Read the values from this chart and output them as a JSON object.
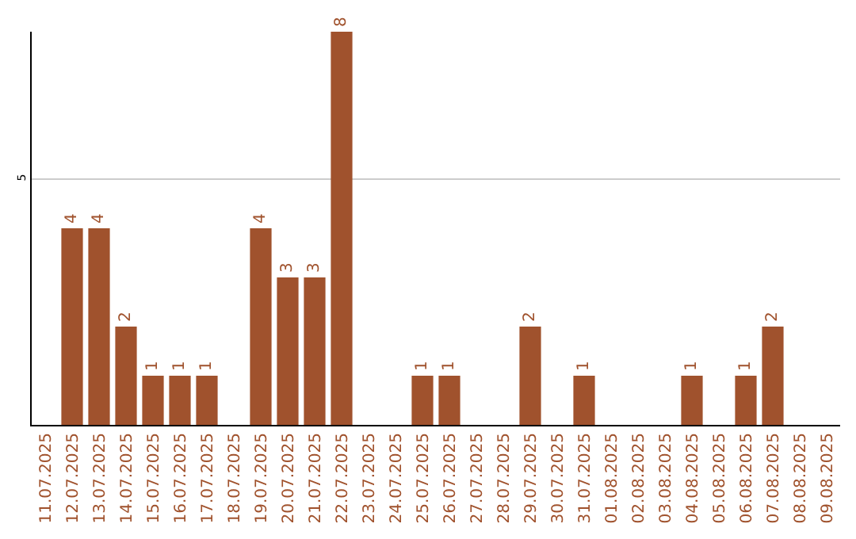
{
  "chart_data": {
    "type": "bar",
    "categories": [
      "11.07.2025",
      "12.07.2025",
      "13.07.2025",
      "14.07.2025",
      "15.07.2025",
      "16.07.2025",
      "17.07.2025",
      "18.07.2025",
      "19.07.2025",
      "20.07.2025",
      "21.07.2025",
      "22.07.2025",
      "23.07.2025",
      "24.07.2025",
      "25.07.2025",
      "26.07.2025",
      "27.07.2025",
      "28.07.2025",
      "29.07.2025",
      "30.07.2025",
      "31.07.2025",
      "01.08.2025",
      "02.08.2025",
      "03.08.2025",
      "04.08.2025",
      "05.08.2025",
      "06.08.2025",
      "07.08.2025",
      "08.08.2025",
      "09.08.2025"
    ],
    "values": [
      0,
      4,
      4,
      2,
      1,
      1,
      1,
      0,
      4,
      3,
      3,
      8,
      0,
      0,
      1,
      1,
      0,
      0,
      2,
      0,
      1,
      0,
      0,
      0,
      1,
      0,
      1,
      2,
      0,
      0
    ],
    "value_labels": [
      null,
      "4",
      "4",
      "2",
      "1",
      "1",
      "1",
      null,
      "4",
      "3",
      "3",
      "8",
      null,
      null,
      "1",
      "1",
      null,
      null,
      "2",
      null,
      "1",
      null,
      null,
      null,
      "1",
      null,
      "1",
      "2",
      null,
      null
    ],
    "color": "#a0522d",
    "ylim": [
      0,
      8
    ],
    "yticks": [
      5
    ],
    "grid": "y"
  }
}
